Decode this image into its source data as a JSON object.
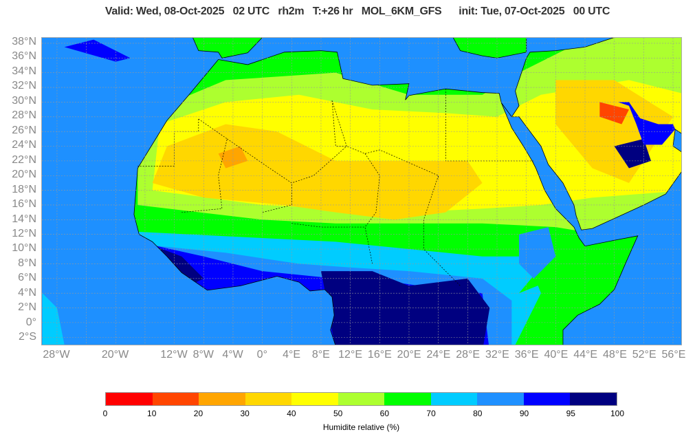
{
  "title": "Valid: Wed, 08-Oct-2025   02 UTC   rh2m   T:+26 hr   MOL_6KM_GFS      init: Tue, 07-Oct-2025   00 UTC",
  "map": {
    "lat_labels": [
      "38°N",
      "36°N",
      "34°N",
      "32°N",
      "30°N",
      "28°N",
      "26°N",
      "24°N",
      "22°N",
      "20°N",
      "18°N",
      "16°N",
      "14°N",
      "12°N",
      "10°N",
      "8°N",
      "6°N",
      "4°N",
      "2°N",
      "0°",
      "2°S"
    ],
    "lat_values": [
      38,
      36,
      34,
      32,
      30,
      28,
      26,
      24,
      22,
      20,
      18,
      16,
      14,
      12,
      10,
      8,
      6,
      4,
      2,
      0,
      -2
    ],
    "lon_labels": [
      "28°W",
      "20°W",
      "12°W",
      "8°W",
      "4°W",
      "0°",
      "4°E",
      "8°E",
      "12°E",
      "16°E",
      "20°E",
      "24°E",
      "28°E",
      "32°E",
      "36°E",
      "40°E",
      "44°E",
      "48°E",
      "52°E",
      "56°E"
    ],
    "lon_values": [
      -28,
      -20,
      -12,
      -8,
      -4,
      0,
      4,
      8,
      12,
      16,
      20,
      24,
      28,
      32,
      36,
      40,
      44,
      48,
      52,
      56
    ],
    "ocean_color": "#1e90ff"
  },
  "colorbar": {
    "label": "Humidite relative (%)",
    "ticks": [
      "0",
      "10",
      "20",
      "30",
      "40",
      "50",
      "60",
      "70",
      "80",
      "90",
      "95",
      "100"
    ],
    "colors": [
      "#ff0000",
      "#ff4500",
      "#ffa500",
      "#ffd700",
      "#ffff00",
      "#adff2f",
      "#00ff00",
      "#00ccff",
      "#1e90ff",
      "#0000ff",
      "#000080"
    ]
  }
}
